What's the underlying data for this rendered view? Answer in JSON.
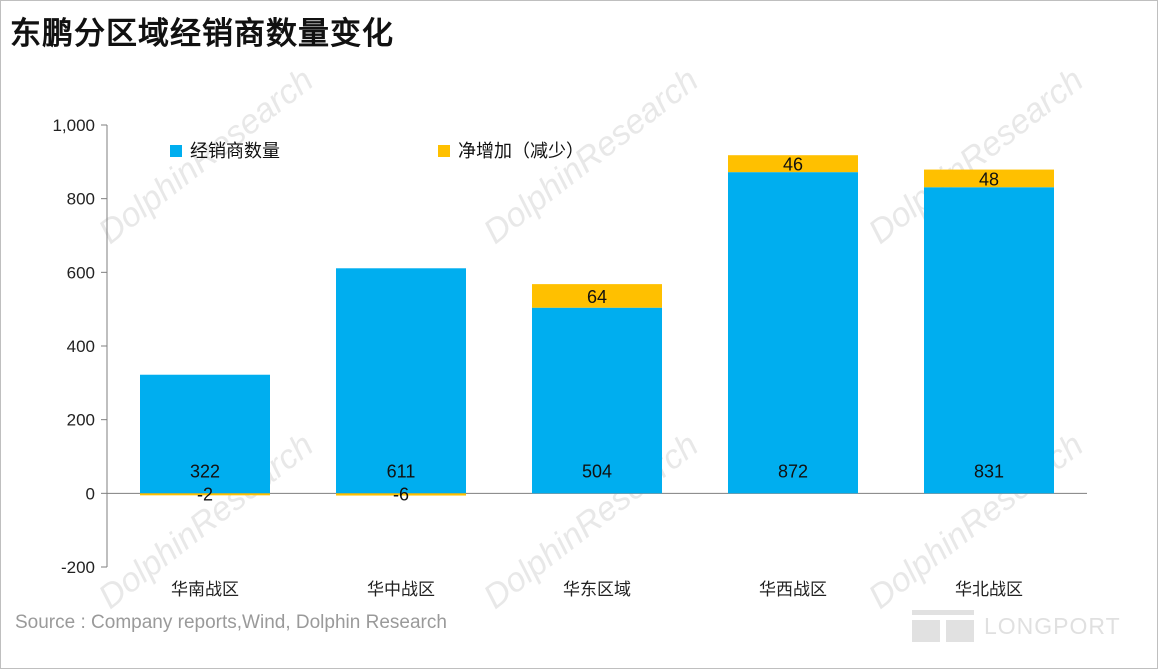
{
  "page": {
    "title": "东鹏分区域经销商数量变化",
    "source": "Source : Company reports,Wind, Dolphin Research",
    "watermark": "DolphinResearch",
    "brand": "LONGPORT"
  },
  "colors": {
    "base": "#00AEEF",
    "change": "#FFC000",
    "axis": "#7f7f7f"
  },
  "chart_data": {
    "type": "bar",
    "stacked": true,
    "title": "东鹏分区域经销商数量变化",
    "categories": [
      "华南战区",
      "华中战区",
      "华东区域",
      "华西战区",
      "华北战区"
    ],
    "series": [
      {
        "name": "经销商数量",
        "values": [
          322,
          611,
          504,
          872,
          831
        ]
      },
      {
        "name": "净增加（减少）",
        "values": [
          -2,
          -6,
          64,
          46,
          48
        ]
      }
    ],
    "ylim": [
      -200,
      1000
    ],
    "yticks": [
      "-200",
      "0",
      "200",
      "400",
      "600",
      "800",
      "1,000"
    ],
    "ytick_values": [
      -200,
      0,
      200,
      400,
      600,
      800,
      1000
    ],
    "legend_position": "top",
    "grid": false,
    "xlabel": "",
    "ylabel": ""
  }
}
